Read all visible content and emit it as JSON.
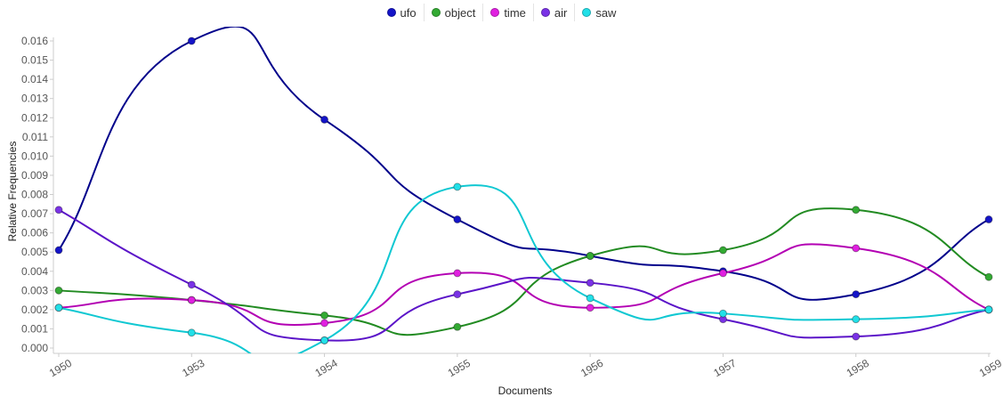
{
  "chart_data": {
    "type": "line",
    "categories": [
      "1950",
      "1953",
      "1954",
      "1955",
      "1956",
      "1957",
      "1958",
      "1959"
    ],
    "xlabel": "Documents",
    "ylabel": "Relative Frequencies",
    "ylim": [
      0,
      0.016
    ],
    "yticks": [
      "0.000",
      "0.001",
      "0.002",
      "0.003",
      "0.004",
      "0.005",
      "0.006",
      "0.007",
      "0.008",
      "0.009",
      "0.010",
      "0.011",
      "0.012",
      "0.013",
      "0.014",
      "0.015",
      "0.016"
    ],
    "grid": false,
    "legend_position": "top-center",
    "curve": "smooth",
    "series": [
      {
        "name": "ufo",
        "color": "#00008b",
        "marker": "#1414c8",
        "values": [
          0.0051,
          0.016,
          0.0119,
          0.0067,
          0.0048,
          0.004,
          0.0028,
          0.0067
        ]
      },
      {
        "name": "object",
        "color": "#228b22",
        "marker": "#33aa33",
        "values": [
          0.003,
          0.0025,
          0.0017,
          0.0011,
          0.0048,
          0.0051,
          0.0072,
          0.0037
        ]
      },
      {
        "name": "time",
        "color": "#b300b3",
        "marker": "#e020e0",
        "values": [
          0.0021,
          0.0025,
          0.0013,
          0.0039,
          0.0021,
          0.0039,
          0.0052,
          0.002
        ]
      },
      {
        "name": "air",
        "color": "#5b14c8",
        "marker": "#7a32e6",
        "values": [
          0.0072,
          0.0033,
          0.0004,
          0.0028,
          0.0034,
          0.0015,
          0.0006,
          0.002
        ]
      },
      {
        "name": "saw",
        "color": "#10c8d2",
        "marker": "#22e0e8",
        "values": [
          0.0021,
          0.0008,
          0.0004,
          0.0084,
          0.0026,
          0.0018,
          0.0015,
          0.002
        ]
      }
    ]
  }
}
